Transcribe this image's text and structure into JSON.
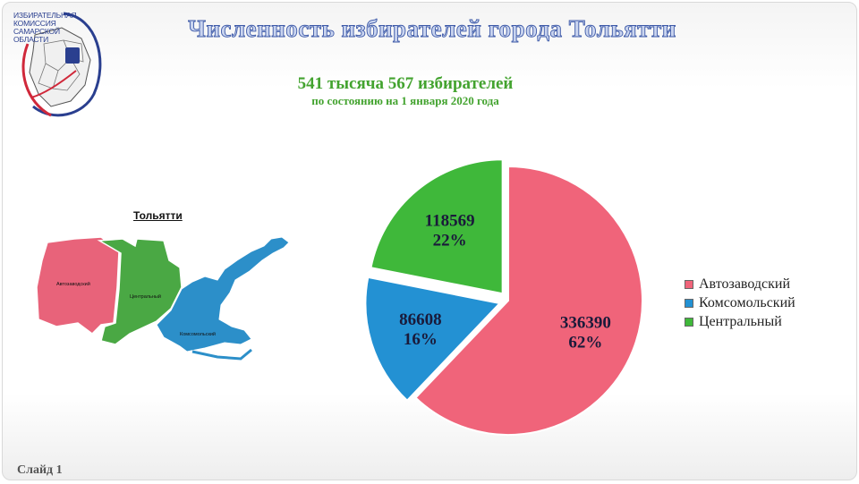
{
  "logo": {
    "text": "ИЗБИРАТЕЛЬНАЯ\nКОМИССИЯ\nСАМАРСКОЙ\nОБЛАСТИ"
  },
  "title": "Численность избирателей города Тольятти",
  "subtitle": {
    "main": "541 тысяча 567 избирателей",
    "date": "по состоянию на 1 января 2020 года"
  },
  "map": {
    "title": "Тольятти",
    "districts": [
      {
        "label": "Автозаводский",
        "color": "#e8637a"
      },
      {
        "label": "Центральный",
        "color": "#4aa844"
      },
      {
        "label": "Комсомольский",
        "color": "#2c8fc9"
      }
    ]
  },
  "chart_data": {
    "type": "pie",
    "categories": [
      "Автозаводский",
      "Комсомольский",
      "Центральный"
    ],
    "values": [
      336390,
      86608,
      118569
    ],
    "percent_labels": [
      "62%",
      "16%",
      "22%"
    ],
    "colors": [
      "#f0647a",
      "#2391d3",
      "#3fb83a"
    ],
    "legend": "right"
  },
  "footer": "Слайд 1"
}
